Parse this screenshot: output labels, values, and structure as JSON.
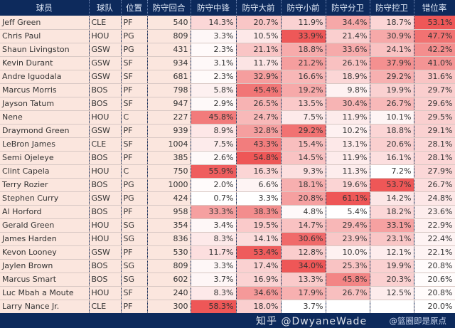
{
  "headers": [
    "球员",
    "球队",
    "位置",
    "防守回合",
    "防守中锋",
    "防守大前",
    "防守小前",
    "防守分卫",
    "防守控卫",
    "错位率"
  ],
  "rows": [
    [
      "Jeff Green",
      "CLE",
      "PF",
      "540",
      "14.3%",
      "20.7%",
      "11.9%",
      "34.4%",
      "18.7%",
      "53.1%"
    ],
    [
      "Chris Paul",
      "HOU",
      "PG",
      "809",
      "3.3%",
      "10.5%",
      "33.9%",
      "21.4%",
      "30.9%",
      "47.7%"
    ],
    [
      "Shaun Livingston",
      "GSW",
      "PG",
      "431",
      "2.3%",
      "21.1%",
      "18.8%",
      "33.6%",
      "24.1%",
      "42.2%"
    ],
    [
      "Kevin Durant",
      "GSW",
      "SF",
      "934",
      "3.1%",
      "11.7%",
      "21.2%",
      "26.1%",
      "37.9%",
      "41.0%"
    ],
    [
      "Andre Iguodala",
      "GSW",
      "SF",
      "681",
      "2.3%",
      "32.9%",
      "16.6%",
      "18.9%",
      "29.2%",
      "31.6%"
    ],
    [
      "Marcus Morris",
      "BOS",
      "PF",
      "798",
      "5.8%",
      "45.4%",
      "19.2%",
      "9.8%",
      "19.9%",
      "29.7%"
    ],
    [
      "Jayson Tatum",
      "BOS",
      "SF",
      "947",
      "2.9%",
      "26.5%",
      "13.5%",
      "30.4%",
      "26.7%",
      "29.6%"
    ],
    [
      "Nene",
      "HOU",
      "C",
      "227",
      "45.8%",
      "24.7%",
      "7.5%",
      "11.9%",
      "10.1%",
      "29.5%"
    ],
    [
      "Draymond Green",
      "GSW",
      "PF",
      "939",
      "8.9%",
      "32.8%",
      "29.2%",
      "10.2%",
      "18.8%",
      "29.1%"
    ],
    [
      "LeBron James",
      "CLE",
      "SF",
      "1004",
      "7.5%",
      "43.3%",
      "15.4%",
      "13.1%",
      "20.6%",
      "28.1%"
    ],
    [
      "Semi Ojeleye",
      "BOS",
      "PF",
      "385",
      "2.6%",
      "54.8%",
      "14.5%",
      "11.9%",
      "16.1%",
      "28.1%"
    ],
    [
      "Clint Capela",
      "HOU",
      "C",
      "750",
      "55.9%",
      "16.3%",
      "9.3%",
      "11.3%",
      "7.2%",
      "27.9%"
    ],
    [
      "Terry Rozier",
      "BOS",
      "PG",
      "1000",
      "2.0%",
      "6.6%",
      "18.1%",
      "19.6%",
      "53.7%",
      "26.7%"
    ],
    [
      "Stephen Curry",
      "GSW",
      "PG",
      "424",
      "0.7%",
      "3.3%",
      "20.8%",
      "61.1%",
      "14.2%",
      "24.8%"
    ],
    [
      "Al Horford",
      "BOS",
      "PF",
      "958",
      "33.3%",
      "38.3%",
      "4.8%",
      "5.4%",
      "18.2%",
      "23.6%"
    ],
    [
      "Gerald Green",
      "HOU",
      "SG",
      "354",
      "3.4%",
      "19.5%",
      "14.7%",
      "29.4%",
      "33.1%",
      "22.9%"
    ],
    [
      "James Harden",
      "HOU",
      "SG",
      "836",
      "8.3%",
      "14.1%",
      "30.6%",
      "23.9%",
      "23.1%",
      "22.4%"
    ],
    [
      "Kevon Looney",
      "GSW",
      "PF",
      "530",
      "11.7%",
      "53.4%",
      "12.8%",
      "10.0%",
      "12.1%",
      "22.1%"
    ],
    [
      "Jaylen Brown",
      "BOS",
      "SG",
      "809",
      "3.3%",
      "17.4%",
      "34.0%",
      "25.3%",
      "19.9%",
      "20.8%"
    ],
    [
      "Marcus Smart",
      "BOS",
      "SG",
      "602",
      "3.7%",
      "16.9%",
      "13.3%",
      "45.8%",
      "20.3%",
      "20.6%"
    ],
    [
      "Luc Mbah a Moute",
      "HOU",
      "SF",
      "240",
      "8.3%",
      "34.6%",
      "17.9%",
      "26.7%",
      "12.5%",
      "20.8%"
    ],
    [
      "Larry Nance Jr.",
      "CLE",
      "PF",
      "300",
      "58.3%",
      "18.0%",
      "3.7%",
      "",
      "",
      "20.0%"
    ]
  ],
  "heat_colors": {
    "low": "#ffffff",
    "high": "#ee5757"
  },
  "footer": {
    "credit": "@篮圈即是原点"
  },
  "watermark": "知乎 @DwyaneWade"
}
